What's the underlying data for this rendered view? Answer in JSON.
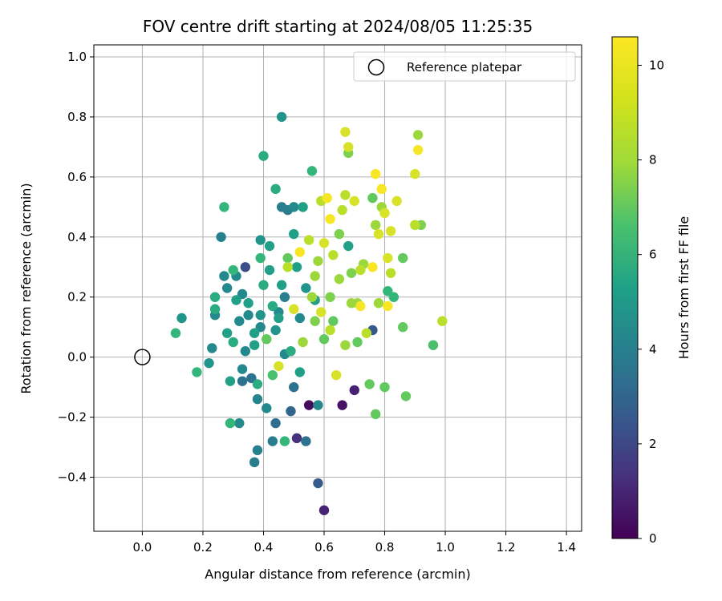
{
  "chart_data": {
    "type": "scatter",
    "title": "FOV centre drift starting at 2024/08/05 11:25:35",
    "xlabel": "Angular distance from reference (arcmin)",
    "ylabel": "Rotation from reference (arcmin)",
    "xlim": [
      -0.16,
      1.45
    ],
    "ylim": [
      -0.58,
      1.04
    ],
    "xticks": [
      "0.0",
      "0.2",
      "0.4",
      "0.6",
      "0.8",
      "1.0",
      "1.2",
      "1.4"
    ],
    "xtick_values": [
      0.0,
      0.2,
      0.4,
      0.6,
      0.8,
      1.0,
      1.2,
      1.4
    ],
    "yticks": [
      "−0.4",
      "−0.2",
      "0.0",
      "0.2",
      "0.4",
      "0.6",
      "0.8",
      "1.0"
    ],
    "ytick_values": [
      -0.4,
      -0.2,
      0.0,
      0.2,
      0.4,
      0.6,
      0.8,
      1.0
    ],
    "grid": true,
    "legend": {
      "label": "Reference platepar",
      "position": "top-right"
    },
    "reference_point": {
      "x": 0.0,
      "y": 0.0
    },
    "colorbar": {
      "label": "Hours from first FF file",
      "range": [
        0,
        10.6
      ],
      "ticks": [
        "0",
        "2",
        "4",
        "6",
        "8",
        "10"
      ],
      "tick_values": [
        0,
        2,
        4,
        6,
        8,
        10
      ],
      "colormap": "viridis"
    },
    "series": [
      {
        "points": [
          [
            0.11,
            0.08,
            7.0
          ],
          [
            0.13,
            0.13,
            5.5
          ],
          [
            0.18,
            -0.05,
            7.0
          ],
          [
            0.22,
            -0.02,
            5.5
          ],
          [
            0.23,
            0.03,
            5.0
          ],
          [
            0.24,
            0.14,
            5.0
          ],
          [
            0.24,
            0.16,
            6.5
          ],
          [
            0.24,
            0.2,
            6.5
          ],
          [
            0.26,
            0.4,
            4.6
          ],
          [
            0.27,
            0.5,
            7.0
          ],
          [
            0.27,
            0.27,
            5.0
          ],
          [
            0.28,
            0.23,
            5.0
          ],
          [
            0.28,
            0.08,
            6.0
          ],
          [
            0.29,
            -0.08,
            6.0
          ],
          [
            0.29,
            -0.22,
            7.0
          ],
          [
            0.3,
            0.29,
            7.0
          ],
          [
            0.3,
            0.05,
            6.5
          ],
          [
            0.31,
            0.27,
            5.0
          ],
          [
            0.31,
            0.19,
            6.0
          ],
          [
            0.32,
            -0.22,
            5.0
          ],
          [
            0.32,
            0.12,
            5.0
          ],
          [
            0.33,
            -0.04,
            5.0
          ],
          [
            0.33,
            -0.08,
            4.0
          ],
          [
            0.33,
            0.21,
            5.0
          ],
          [
            0.34,
            0.02,
            5.0
          ],
          [
            0.34,
            0.3,
            2.5
          ],
          [
            0.35,
            0.18,
            6.0
          ],
          [
            0.35,
            0.14,
            5.0
          ],
          [
            0.36,
            -0.07,
            4.0
          ],
          [
            0.37,
            0.04,
            6.0
          ],
          [
            0.37,
            0.08,
            6.0
          ],
          [
            0.37,
            -0.35,
            4.5
          ],
          [
            0.38,
            -0.31,
            4.6
          ],
          [
            0.38,
            -0.14,
            4.8
          ],
          [
            0.38,
            -0.09,
            6.5
          ],
          [
            0.39,
            0.39,
            5.5
          ],
          [
            0.39,
            0.33,
            7.0
          ],
          [
            0.39,
            0.14,
            5.5
          ],
          [
            0.39,
            0.1,
            5.0
          ],
          [
            0.4,
            0.67,
            6.5
          ],
          [
            0.4,
            0.24,
            6.5
          ],
          [
            0.41,
            -0.17,
            5.0
          ],
          [
            0.41,
            0.06,
            8.0
          ],
          [
            0.42,
            0.37,
            6.0
          ],
          [
            0.42,
            0.29,
            6.0
          ],
          [
            0.43,
            -0.28,
            4.5
          ],
          [
            0.43,
            -0.06,
            7.5
          ],
          [
            0.43,
            0.17,
            6.5
          ],
          [
            0.44,
            0.56,
            6.5
          ],
          [
            0.44,
            -0.22,
            3.8
          ],
          [
            0.44,
            0.09,
            5.5
          ],
          [
            0.45,
            0.15,
            5.0
          ],
          [
            0.45,
            0.13,
            6.0
          ],
          [
            0.46,
            0.8,
            5.5
          ],
          [
            0.46,
            0.5,
            4.5
          ],
          [
            0.46,
            0.24,
            6.0
          ],
          [
            0.47,
            -0.28,
            7.0
          ],
          [
            0.47,
            0.01,
            5.0
          ],
          [
            0.47,
            0.2,
            4.5
          ],
          [
            0.48,
            0.49,
            4.5
          ],
          [
            0.48,
            0.33,
            8.0
          ],
          [
            0.48,
            0.3,
            9.5
          ],
          [
            0.49,
            0.02,
            6.5
          ],
          [
            0.49,
            -0.18,
            3.5
          ],
          [
            0.5,
            0.5,
            5.0
          ],
          [
            0.5,
            -0.1,
            4.0
          ],
          [
            0.5,
            0.16,
            10.0
          ],
          [
            0.5,
            0.41,
            6.0
          ],
          [
            0.51,
            0.3,
            6.0
          ],
          [
            0.51,
            -0.27,
            1.5
          ],
          [
            0.52,
            0.35,
            10.5
          ],
          [
            0.52,
            -0.05,
            6.0
          ],
          [
            0.52,
            0.13,
            5.0
          ],
          [
            0.53,
            0.5,
            6.0
          ],
          [
            0.54,
            -0.28,
            4.0
          ],
          [
            0.54,
            0.23,
            5.5
          ],
          [
            0.55,
            0.39,
            9.5
          ],
          [
            0.55,
            -0.16,
            0.3
          ],
          [
            0.56,
            0.62,
            7.0
          ],
          [
            0.56,
            0.2,
            9.0
          ],
          [
            0.57,
            0.27,
            9.0
          ],
          [
            0.57,
            0.19,
            6.0
          ],
          [
            0.58,
            0.32,
            9.0
          ],
          [
            0.58,
            -0.42,
            3.0
          ],
          [
            0.58,
            -0.16,
            5.0
          ],
          [
            0.59,
            0.52,
            9.5
          ],
          [
            0.59,
            0.15,
            10.0
          ],
          [
            0.6,
            -0.51,
            1.0
          ],
          [
            0.6,
            0.38,
            10.0
          ],
          [
            0.61,
            0.53,
            10.5
          ],
          [
            0.62,
            0.46,
            10.5
          ],
          [
            0.62,
            0.09,
            9.5
          ],
          [
            0.63,
            0.34,
            9.5
          ],
          [
            0.63,
            0.12,
            8.0
          ],
          [
            0.64,
            -0.06,
            10.0
          ],
          [
            0.65,
            0.41,
            8.5
          ],
          [
            0.65,
            0.26,
            9.0
          ],
          [
            0.66,
            0.49,
            9.5
          ],
          [
            0.66,
            -0.16,
            0.5
          ],
          [
            0.67,
            0.75,
            10.0
          ],
          [
            0.67,
            0.54,
            9.5
          ],
          [
            0.67,
            0.04,
            9.0
          ],
          [
            0.68,
            0.7,
            10.0
          ],
          [
            0.68,
            0.68,
            8.5
          ],
          [
            0.68,
            0.37,
            6.0
          ],
          [
            0.69,
            0.28,
            8.5
          ],
          [
            0.69,
            0.18,
            9.0
          ],
          [
            0.7,
            0.52,
            10.0
          ],
          [
            0.7,
            -0.11,
            1.0
          ],
          [
            0.71,
            0.05,
            8.0
          ],
          [
            0.72,
            0.17,
            10.5
          ],
          [
            0.72,
            0.29,
            9.5
          ],
          [
            0.73,
            0.31,
            9.0
          ],
          [
            0.74,
            0.08,
            9.5
          ],
          [
            0.75,
            -0.09,
            8.0
          ],
          [
            0.76,
            0.53,
            8.0
          ],
          [
            0.76,
            0.3,
            10.5
          ],
          [
            0.76,
            0.09,
            3.0
          ],
          [
            0.77,
            0.61,
            10.5
          ],
          [
            0.77,
            -0.19,
            8.0
          ],
          [
            0.77,
            0.44,
            9.0
          ],
          [
            0.78,
            0.41,
            10.0
          ],
          [
            0.78,
            0.18,
            9.0
          ],
          [
            0.79,
            0.5,
            9.0
          ],
          [
            0.79,
            0.56,
            10.5
          ],
          [
            0.8,
            0.48,
            10.0
          ],
          [
            0.8,
            -0.1,
            8.0
          ],
          [
            0.81,
            0.33,
            10.0
          ],
          [
            0.81,
            0.17,
            10.5
          ],
          [
            0.81,
            0.22,
            7.0
          ],
          [
            0.82,
            0.42,
            10.0
          ],
          [
            0.82,
            0.28,
            9.5
          ],
          [
            0.83,
            0.2,
            7.0
          ],
          [
            0.84,
            0.52,
            10.0
          ],
          [
            0.86,
            0.33,
            8.0
          ],
          [
            0.86,
            0.1,
            8.0
          ],
          [
            0.87,
            -0.13,
            8.0
          ],
          [
            0.9,
            0.44,
            9.5
          ],
          [
            0.9,
            0.61,
            10.0
          ],
          [
            0.91,
            0.74,
            9.0
          ],
          [
            0.91,
            0.69,
            10.5
          ],
          [
            0.92,
            0.44,
            8.5
          ],
          [
            0.96,
            0.04,
            7.5
          ],
          [
            0.99,
            0.12,
            9.5
          ],
          [
            0.53,
            0.05,
            9.0
          ],
          [
            0.57,
            0.12,
            8.5
          ],
          [
            0.6,
            0.06,
            8.0
          ],
          [
            0.45,
            -0.03,
            10.0
          ],
          [
            0.62,
            0.2,
            8.5
          ],
          [
            0.71,
            0.18,
            9.0
          ]
        ]
      }
    ]
  }
}
